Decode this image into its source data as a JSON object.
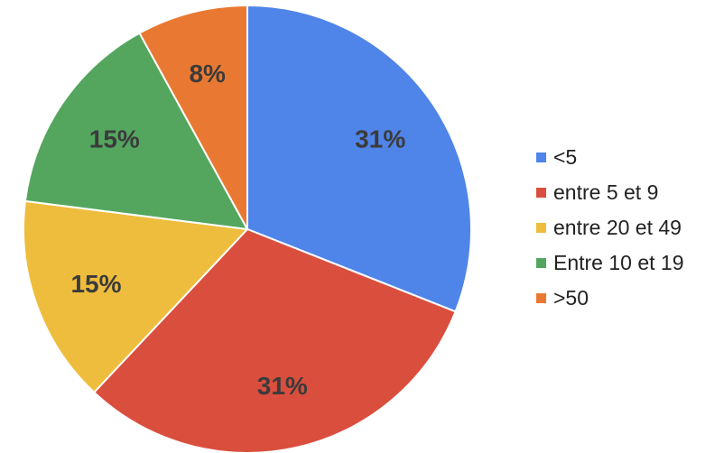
{
  "chart_data": {
    "type": "pie",
    "start_angle": "top",
    "direction": "clockwise",
    "slices": [
      {
        "label": "<5",
        "value": 31,
        "display": "31%",
        "color": "#4f84e9"
      },
      {
        "label": "entre 5 et 9",
        "value": 31,
        "display": "31%",
        "color": "#da4e3e"
      },
      {
        "label": "entre 20 et 49",
        "value": 15,
        "display": "15%",
        "color": "#efbd3d"
      },
      {
        "label": "Entre 10 et 19",
        "value": 15,
        "display": "15%",
        "color": "#54a65f"
      },
      {
        "label": ">50",
        "value": 8,
        "display": "8%",
        "color": "#e97932"
      }
    ],
    "legend_position": "right"
  }
}
